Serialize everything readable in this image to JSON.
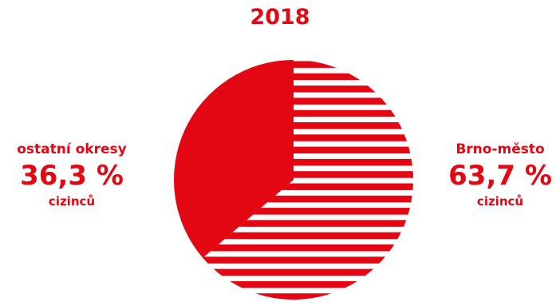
{
  "chart_data": {
    "type": "pie",
    "title": "2018",
    "slices": [
      {
        "label": "Brno-město",
        "value": 63.7,
        "value_label": "63,7 %",
        "unit_label": "cizinců",
        "fill": "striped"
      },
      {
        "label": "ostatní okresy",
        "value": 36.3,
        "value_label": "36,3 %",
        "unit_label": "cizinců",
        "fill": "solid"
      }
    ]
  },
  "colors": {
    "accent": "#e30613",
    "background": "#ffffff"
  }
}
